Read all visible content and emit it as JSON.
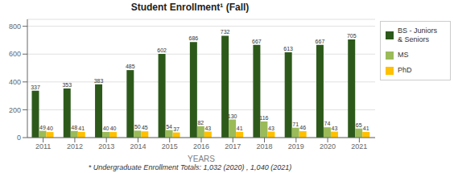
{
  "chart_data": {
    "type": "bar",
    "title": "Student Enrollment¹ (Fall)",
    "xlabel": "YEARS",
    "annotations": [
      "* Undergraduate Enrollment Totals: 1,032 (2020) , 1,040 (2021)"
    ],
    "categories": [
      "2011",
      "2012",
      "2013",
      "2014",
      "2015",
      "2016",
      "2017",
      "2018",
      "2019",
      "2020",
      "2021"
    ],
    "series": [
      {
        "name": "BS - Juniors\n& Seniors",
        "color": "#2d5a1b",
        "values": [
          337,
          353,
          383,
          485,
          602,
          686,
          732,
          667,
          613,
          667,
          705
        ]
      },
      {
        "name": "MS",
        "color": "#9bbb59",
        "values": [
          49,
          48,
          40,
          50,
          54,
          82,
          130,
          116,
          71,
          74,
          65
        ]
      },
      {
        "name": "PhD",
        "color": "#ffc000",
        "values": [
          40,
          41,
          40,
          45,
          37,
          43,
          41,
          43,
          46,
          43,
          41
        ]
      }
    ],
    "ylim": [
      0,
      850
    ],
    "yticks": [
      0,
      200,
      400,
      600,
      800
    ],
    "grid": true,
    "legend": "right",
    "data_labels": true
  }
}
